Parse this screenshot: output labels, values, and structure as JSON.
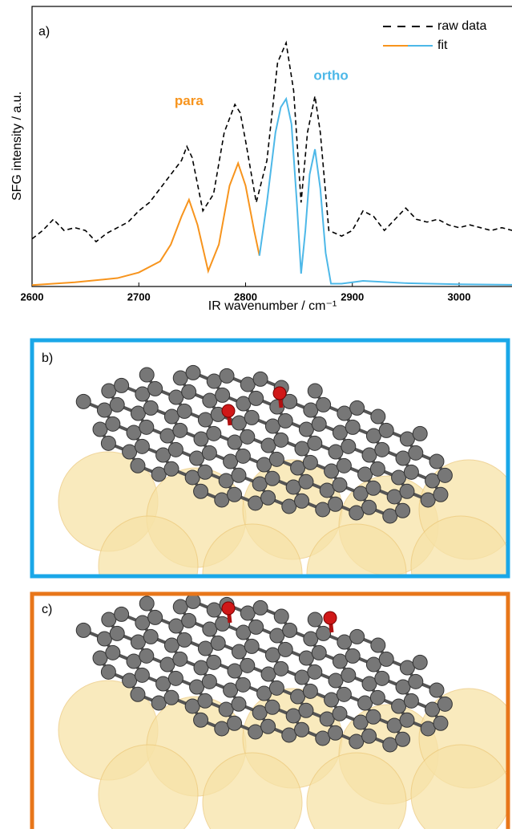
{
  "chart_data": {
    "type": "line",
    "panel_label": "a)",
    "xlabel": "IR wavenumber / cm⁻¹",
    "ylabel": "SFG intensity / a.u.",
    "xlim": [
      2600,
      3050
    ],
    "xticks": [
      2600,
      2700,
      2800,
      2900,
      3000
    ],
    "ylim": [
      0,
      1
    ],
    "legend": "upper right",
    "series": [
      {
        "name": "raw data",
        "color": "#000000",
        "dashed": true,
        "x": [
          2600,
          2610,
          2620,
          2630,
          2640,
          2650,
          2660,
          2670,
          2680,
          2690,
          2700,
          2710,
          2720,
          2730,
          2740,
          2745,
          2750,
          2760,
          2770,
          2780,
          2790,
          2795,
          2800,
          2810,
          2820,
          2830,
          2838,
          2845,
          2852,
          2858,
          2865,
          2870,
          2878,
          2890,
          2900,
          2910,
          2920,
          2930,
          2940,
          2950,
          2960,
          2970,
          2980,
          2990,
          3000,
          3010,
          3020,
          3030,
          3040,
          3050
        ],
        "values": [
          0.17,
          0.2,
          0.24,
          0.2,
          0.21,
          0.2,
          0.16,
          0.19,
          0.21,
          0.23,
          0.27,
          0.3,
          0.35,
          0.4,
          0.45,
          0.5,
          0.46,
          0.27,
          0.33,
          0.55,
          0.65,
          0.62,
          0.52,
          0.3,
          0.45,
          0.8,
          0.87,
          0.7,
          0.3,
          0.55,
          0.68,
          0.55,
          0.2,
          0.18,
          0.2,
          0.27,
          0.25,
          0.2,
          0.24,
          0.28,
          0.24,
          0.23,
          0.24,
          0.22,
          0.21,
          0.22,
          0.21,
          0.2,
          0.21,
          0.2
        ]
      },
      {
        "name": "fit",
        "segments": [
          {
            "color": "#f7941d",
            "x": [
              2600,
              2640,
              2680,
              2700,
              2720,
              2730,
              2740,
              2747,
              2755,
              2765,
              2775,
              2785,
              2793,
              2800,
              2808,
              2813
            ],
            "values": [
              0.005,
              0.015,
              0.03,
              0.05,
              0.09,
              0.15,
              0.25,
              0.31,
              0.22,
              0.055,
              0.15,
              0.36,
              0.44,
              0.36,
              0.2,
              0.11
            ]
          },
          {
            "color": "#4db8e8",
            "x": [
              2813,
              2820,
              2828,
              2833,
              2838,
              2843,
              2848,
              2852,
              2856,
              2860,
              2865,
              2870,
              2875,
              2880,
              2890,
              2910,
              2950,
              3000,
              3050
            ],
            "values": [
              0.11,
              0.3,
              0.55,
              0.64,
              0.67,
              0.58,
              0.3,
              0.046,
              0.2,
              0.4,
              0.49,
              0.35,
              0.12,
              0.01,
              0.01,
              0.02,
              0.012,
              0.008,
              0.006
            ]
          }
        ]
      }
    ],
    "annotations": [
      {
        "text": "para",
        "x": 2747,
        "y": 0.66,
        "color": "#f7941d"
      },
      {
        "text": "ortho",
        "x": 2880,
        "y": 0.75,
        "color": "#4db8e8"
      }
    ]
  },
  "panels": [
    {
      "label": "b)",
      "color": "#1aa7e8"
    },
    {
      "label": "c)",
      "color": "#e8761a"
    }
  ]
}
